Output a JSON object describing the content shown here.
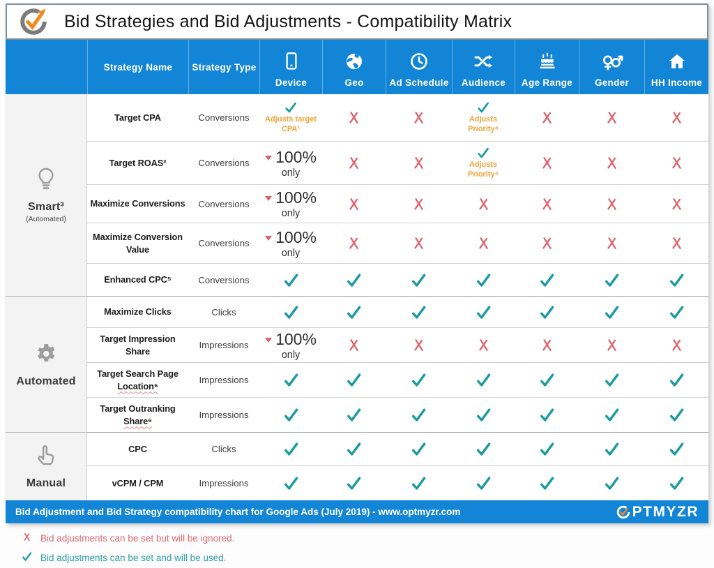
{
  "colors": {
    "header_blue": "#1385d6",
    "check_teal": "#1a9ba1",
    "cross_red": "#dd6670",
    "note_orange": "#f2a132",
    "logo_orange": "#f18a1d"
  },
  "footer": {
    "text": "Bid Adjustment and Bid Strategy compatibility chart for Google Ads (July 2019) - www.optmyzr.com",
    "brand": "OPTMYZR"
  },
  "cell_labels": {
    "pct_big": "100%",
    "pct_small": "only"
  },
  "chart_data": {
    "type": "table",
    "title": "Bid Strategies and Bid Adjustments - Compatibility Matrix",
    "columns": [
      {
        "label": "Strategy Name",
        "icon": null
      },
      {
        "label": "Strategy Type",
        "icon": null
      },
      {
        "label": "Device",
        "icon": "phone"
      },
      {
        "label": "Geo",
        "icon": "globe"
      },
      {
        "label": "Ad Schedule",
        "icon": "clock"
      },
      {
        "label": "Audience",
        "icon": "shuffle"
      },
      {
        "label": "Age Range",
        "icon": "cake"
      },
      {
        "label": "Gender",
        "icon": "gender"
      },
      {
        "label": "HH Income",
        "icon": "house"
      }
    ],
    "groups": [
      {
        "label": "Smart³",
        "sublabel": "(Automated)",
        "icon": "lightbulb",
        "row_start": 0,
        "row_end": 4
      },
      {
        "label": "Automated",
        "sublabel": "",
        "icon": "gear",
        "row_start": 5,
        "row_end": 8
      },
      {
        "label": "Manual",
        "sublabel": "",
        "icon": "hand",
        "row_start": 9,
        "row_end": 10
      }
    ],
    "rows": [
      {
        "name": "Target CPA",
        "type": "Conversions",
        "cells": [
          {
            "v": "check",
            "note": "Adjusts target CPA¹"
          },
          {
            "v": "cross"
          },
          {
            "v": "cross"
          },
          {
            "v": "check",
            "note": "Adjusts Priority⁴"
          },
          {
            "v": "cross"
          },
          {
            "v": "cross"
          },
          {
            "v": "cross"
          }
        ]
      },
      {
        "name": "Target ROAS²",
        "type": "Conversions",
        "cells": [
          {
            "v": "pct100"
          },
          {
            "v": "cross"
          },
          {
            "v": "cross"
          },
          {
            "v": "check",
            "note": "Adjusts Priority⁴"
          },
          {
            "v": "cross"
          },
          {
            "v": "cross"
          },
          {
            "v": "cross"
          }
        ]
      },
      {
        "name": "Maximize Conversions",
        "type": "Conversions",
        "cells": [
          {
            "v": "pct100"
          },
          {
            "v": "cross"
          },
          {
            "v": "cross"
          },
          {
            "v": "cross"
          },
          {
            "v": "cross"
          },
          {
            "v": "cross"
          },
          {
            "v": "cross"
          }
        ]
      },
      {
        "name": "Maximize Conversion Value",
        "type": "Conversions",
        "cells": [
          {
            "v": "pct100"
          },
          {
            "v": "cross"
          },
          {
            "v": "cross"
          },
          {
            "v": "cross"
          },
          {
            "v": "cross"
          },
          {
            "v": "cross"
          },
          {
            "v": "cross"
          }
        ]
      },
      {
        "name": "Enhanced CPC⁵",
        "type": "Conversions",
        "cells": [
          {
            "v": "check"
          },
          {
            "v": "check"
          },
          {
            "v": "check"
          },
          {
            "v": "check"
          },
          {
            "v": "check"
          },
          {
            "v": "check"
          },
          {
            "v": "check"
          }
        ]
      },
      {
        "name": "Maximize Clicks",
        "type": "Clicks",
        "cells": [
          {
            "v": "check"
          },
          {
            "v": "check"
          },
          {
            "v": "check"
          },
          {
            "v": "check"
          },
          {
            "v": "check"
          },
          {
            "v": "check"
          },
          {
            "v": "check"
          }
        ]
      },
      {
        "name": "Target Impression Share",
        "type": "Impressions",
        "cells": [
          {
            "v": "pct100"
          },
          {
            "v": "cross"
          },
          {
            "v": "cross"
          },
          {
            "v": "cross"
          },
          {
            "v": "cross"
          },
          {
            "v": "cross"
          },
          {
            "v": "cross"
          }
        ]
      },
      {
        "name": "Target Search Page Location⁶",
        "type": "Impressions",
        "underline": "Location⁶",
        "cells": [
          {
            "v": "check"
          },
          {
            "v": "check"
          },
          {
            "v": "check"
          },
          {
            "v": "check"
          },
          {
            "v": "check"
          },
          {
            "v": "check"
          },
          {
            "v": "check"
          }
        ]
      },
      {
        "name": "Target Outranking Share⁶",
        "type": "Impressions",
        "underline": "Share⁶",
        "cells": [
          {
            "v": "check"
          },
          {
            "v": "check"
          },
          {
            "v": "check"
          },
          {
            "v": "check"
          },
          {
            "v": "check"
          },
          {
            "v": "check"
          },
          {
            "v": "check"
          }
        ]
      },
      {
        "name": "CPC",
        "type": "Clicks",
        "cells": [
          {
            "v": "check"
          },
          {
            "v": "check"
          },
          {
            "v": "check"
          },
          {
            "v": "check"
          },
          {
            "v": "check"
          },
          {
            "v": "check"
          },
          {
            "v": "check"
          }
        ]
      },
      {
        "name": "vCPM / CPM",
        "type": "Impressions",
        "cells": [
          {
            "v": "check"
          },
          {
            "v": "check"
          },
          {
            "v": "check"
          },
          {
            "v": "check"
          },
          {
            "v": "check"
          },
          {
            "v": "check"
          },
          {
            "v": "check"
          }
        ]
      }
    ],
    "legend": [
      {
        "symbol": "cross",
        "text": "Bid adjustments can be set but will be ignored."
      },
      {
        "symbol": "check",
        "text": "Bid adjustments can be set and will be used."
      }
    ]
  }
}
